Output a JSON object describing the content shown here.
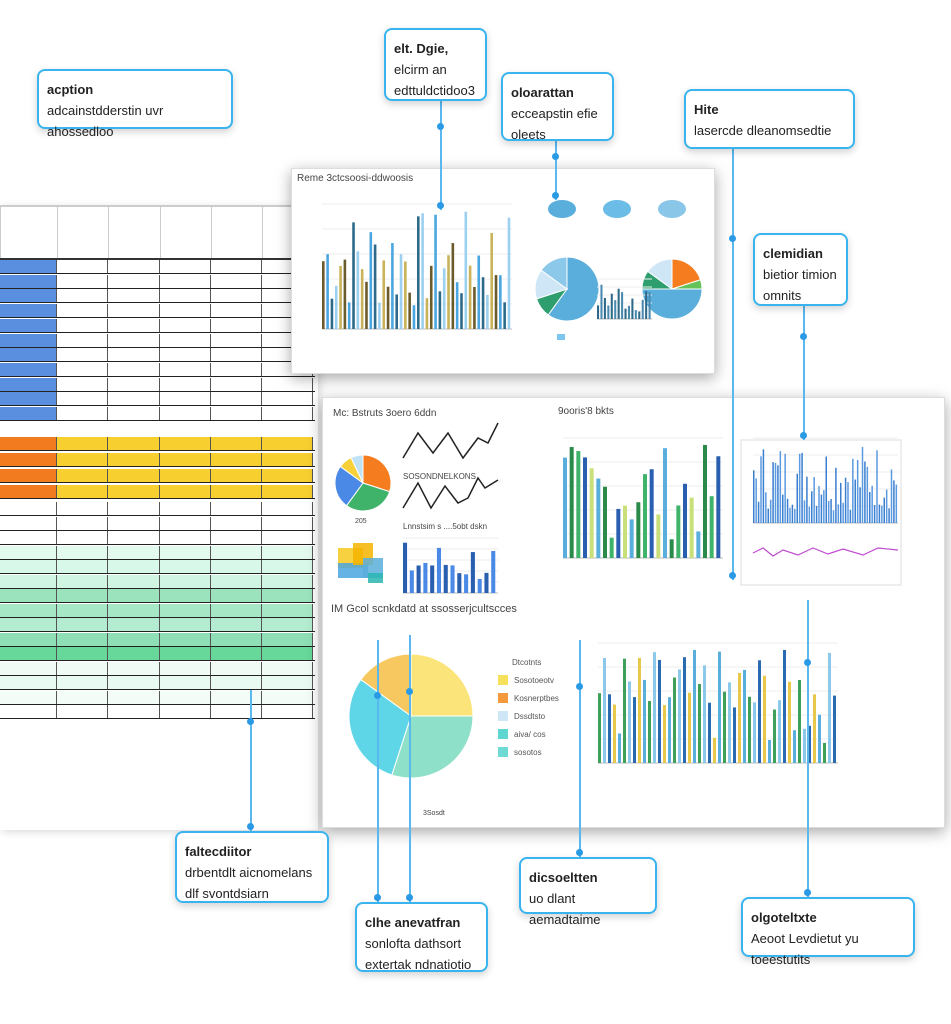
{
  "callouts": [
    {
      "title": "acption",
      "lines": [
        "adcainstdderstin uvr ahossedloo"
      ]
    },
    {
      "title": "elt. Dgie,",
      "lines": [
        "elcirm an",
        "edttuldctidoo3"
      ]
    },
    {
      "title": "oloarattan",
      "lines": [
        "ecceapstin efie",
        "oleets"
      ]
    },
    {
      "title": "Hite",
      "lines": [
        "lasercde dleanomsedtie"
      ]
    },
    {
      "title": "clemidian",
      "lines": [
        "bietior timion",
        "omnits"
      ]
    },
    {
      "title": "faltecdiitor",
      "lines": [
        "drbentdlt aicnomelans",
        "dlf svontdsiarn"
      ]
    },
    {
      "title": "clhe anevatfran",
      "lines": [
        "sonlofta dathsort",
        "extertak ndnatiotio"
      ]
    },
    {
      "title": "dicsoeltten",
      "lines": [
        "uo dlant aemadtaime"
      ]
    },
    {
      "title": "olgoteltxte",
      "lines": [
        "Aeoot Levdietut yu toeestutits"
      ]
    }
  ],
  "top_panel": {
    "title": "Reme 3ctcsoosi-ddwoosis"
  },
  "bottom_panel": {
    "title_left": "Mc: Bstruts  3oero 6ddn",
    "title_mid": "9ooris'8 bkts",
    "subtitle_1": "SOSONDNELKONS",
    "subtitle_2": "Lnnstsim s ....5obt dskn",
    "pie_label": "205",
    "section_title": "IM Gcol scnkdatd at ssosserjcultscces",
    "legend_title": "Dtcotnts",
    "legend": [
      {
        "label": "Sosotoeotv",
        "color": "#f7e15a"
      },
      {
        "label": "Kosnerptbes",
        "color": "#f59a3c"
      },
      {
        "label": "Dssdtsto",
        "color": "#cfe6f7"
      },
      {
        "label": "aiva/ cos",
        "color": "#5fd6d0"
      },
      {
        "label": "sosotos",
        "color": "#6fd9d4"
      }
    ],
    "footer": "3Sosdt"
  },
  "colors": {
    "accent": "#3ab4ee",
    "blue": "#5a8fe0",
    "orange": "#f27b1f",
    "yellow": "#f7c91f",
    "green": "#67d79a"
  }
}
